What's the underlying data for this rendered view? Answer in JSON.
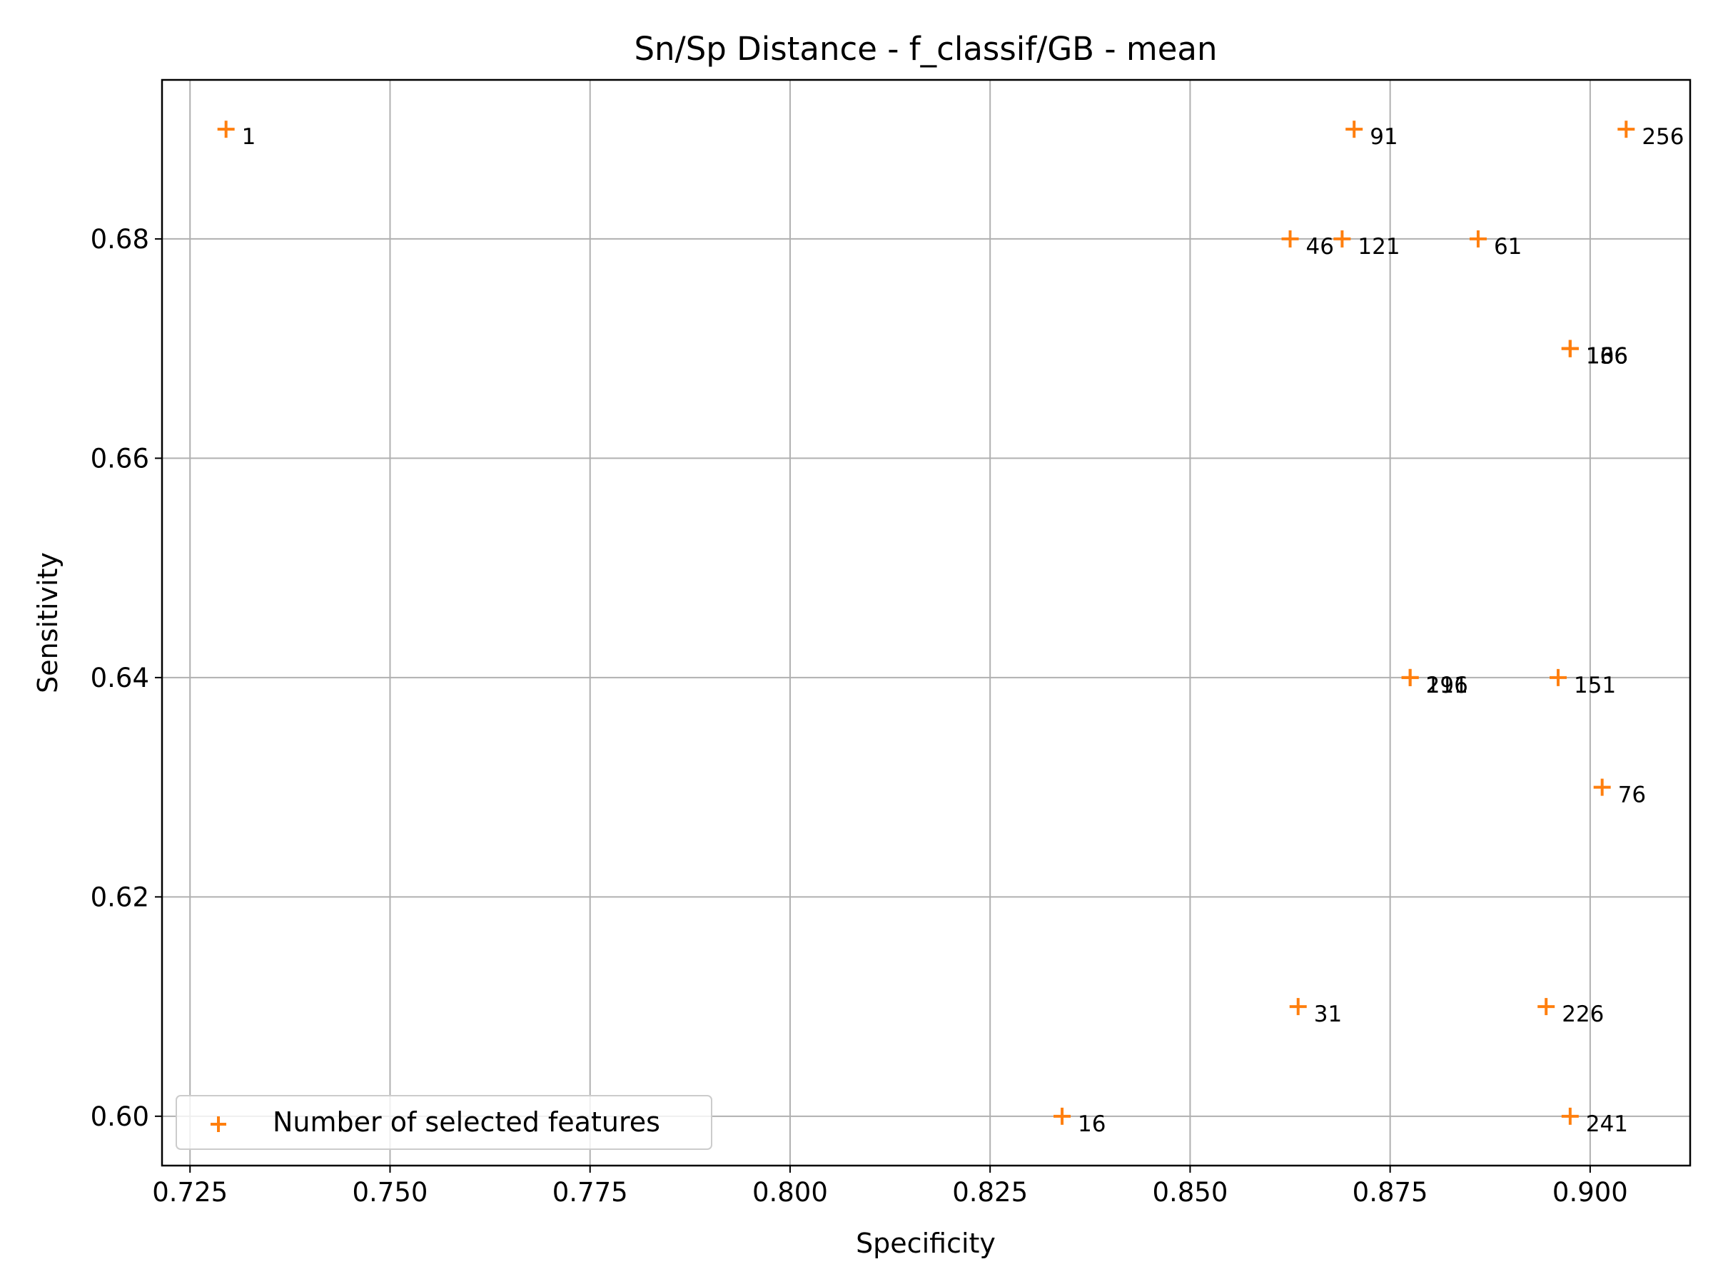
{
  "chart_data": {
    "type": "scatter",
    "title": "Sn/Sp Distance - f_classif/GB - mean",
    "xlabel": "Specificity",
    "ylabel": "Sensitivity",
    "xlim": [
      0.7215,
      0.9125
    ],
    "ylim": [
      0.5955,
      0.6945
    ],
    "x_ticks": [
      0.725,
      0.75,
      0.775,
      0.8,
      0.825,
      0.85,
      0.875,
      0.9
    ],
    "x_tick_labels": [
      "0.725",
      "0.750",
      "0.775",
      "0.800",
      "0.825",
      "0.850",
      "0.875",
      "0.900"
    ],
    "y_ticks": [
      0.6,
      0.62,
      0.64,
      0.66,
      0.68
    ],
    "y_tick_labels": [
      "0.60",
      "0.62",
      "0.64",
      "0.66",
      "0.68"
    ],
    "grid": true,
    "legend_position": "lower-left",
    "series": [
      {
        "name": "Number of selected features",
        "color": "#ff7f0e",
        "marker": "plus",
        "points": [
          {
            "x": 0.7295,
            "y": 0.69,
            "label": "1"
          },
          {
            "x": 0.834,
            "y": 0.6,
            "label": "16"
          },
          {
            "x": 0.8635,
            "y": 0.61,
            "label": "31"
          },
          {
            "x": 0.8625,
            "y": 0.68,
            "label": "46"
          },
          {
            "x": 0.886,
            "y": 0.68,
            "label": "61"
          },
          {
            "x": 0.9015,
            "y": 0.63,
            "label": "76"
          },
          {
            "x": 0.8705,
            "y": 0.69,
            "label": "91"
          },
          {
            "x": 0.8975,
            "y": 0.67,
            "label": "106"
          },
          {
            "x": 0.869,
            "y": 0.68,
            "label": "121"
          },
          {
            "x": 0.8975,
            "y": 0.67,
            "label": "136"
          },
          {
            "x": 0.896,
            "y": 0.64,
            "label": "151"
          },
          {
            "x": 0.8975,
            "y": 0.67,
            "label": "166"
          },
          {
            "x": 0.8775,
            "y": 0.64,
            "label": "196"
          },
          {
            "x": 0.8775,
            "y": 0.64,
            "label": "211"
          },
          {
            "x": 0.8945,
            "y": 0.61,
            "label": "226"
          },
          {
            "x": 0.8975,
            "y": 0.6,
            "label": "241"
          },
          {
            "x": 0.9045,
            "y": 0.69,
            "label": "256"
          }
        ]
      }
    ]
  }
}
